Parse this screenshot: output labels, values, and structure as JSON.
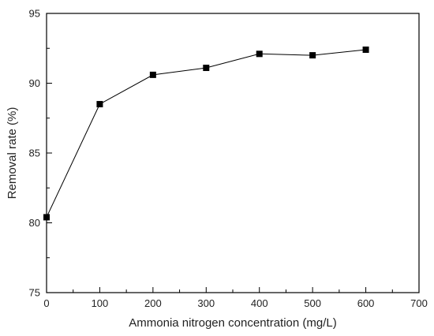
{
  "chart_data": {
    "type": "line",
    "title": "",
    "xlabel": "Ammonia nitrogen concentration (mg/L)",
    "ylabel": "Removal rate (%)",
    "xlim": [
      0,
      700
    ],
    "ylim": [
      75,
      95
    ],
    "xticks": [
      "0",
      "100",
      "200",
      "300",
      "400",
      "500",
      "600",
      "700"
    ],
    "yticks": [
      "75",
      "80",
      "85",
      "90",
      "95"
    ],
    "grid": false,
    "legend": "none",
    "marker": "square",
    "color": "#000000",
    "series": [
      {
        "x": [
          0,
          100,
          200,
          300,
          400,
          500,
          600
        ],
        "values": [
          80.4,
          88.5,
          90.6,
          91.1,
          92.1,
          92.0,
          92.4
        ]
      }
    ]
  }
}
